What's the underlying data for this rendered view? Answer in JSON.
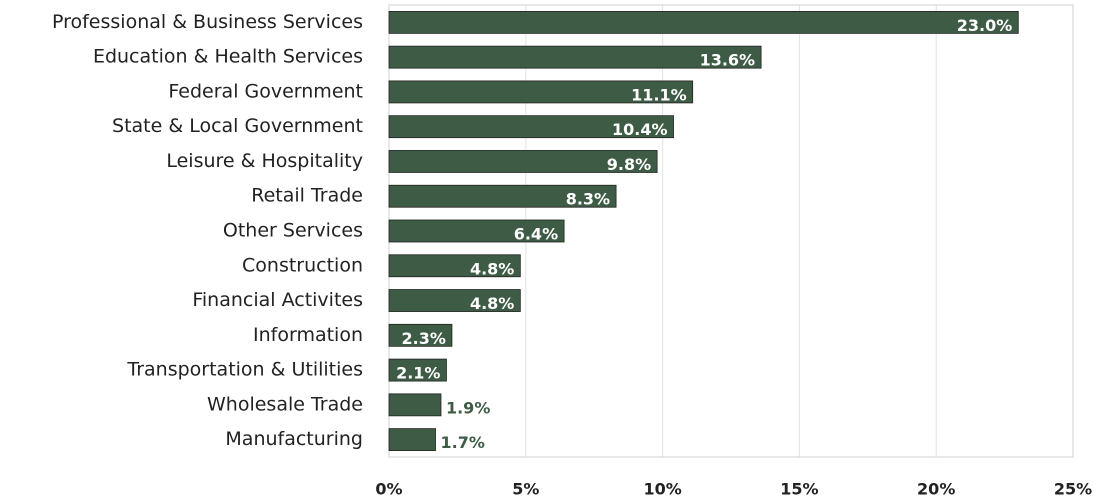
{
  "chart_data": {
    "type": "bar",
    "orientation": "horizontal",
    "categories": [
      "Professional & Business Services",
      "Education & Health Services",
      "Federal Government",
      "State & Local Government",
      "Leisure & Hospitality",
      "Retail Trade",
      "Other Services",
      "Construction",
      "Financial Activites",
      "Information",
      "Transportation & Utilities",
      "Wholesale Trade",
      "Manufacturing"
    ],
    "values": [
      23.0,
      13.6,
      11.1,
      10.4,
      9.8,
      8.3,
      6.4,
      4.8,
      4.8,
      2.3,
      2.1,
      1.9,
      1.7
    ],
    "value_labels": [
      "23.0%",
      "13.6%",
      "11.1%",
      "10.4%",
      "9.8%",
      "8.3%",
      "6.4%",
      "4.8%",
      "4.8%",
      "2.3%",
      "2.1%",
      "1.9%",
      "1.7%"
    ],
    "color": "#3e5c45",
    "xlim": [
      0,
      25
    ],
    "xticks": [
      {
        "value": 0,
        "label": "0%"
      },
      {
        "value": 5,
        "label": "5%"
      },
      {
        "value": 10,
        "label": "10%"
      },
      {
        "value": 15,
        "label": "15%"
      },
      {
        "value": 20,
        "label": "20%"
      },
      {
        "value": 25,
        "label": "25%"
      }
    ],
    "grid": true
  }
}
